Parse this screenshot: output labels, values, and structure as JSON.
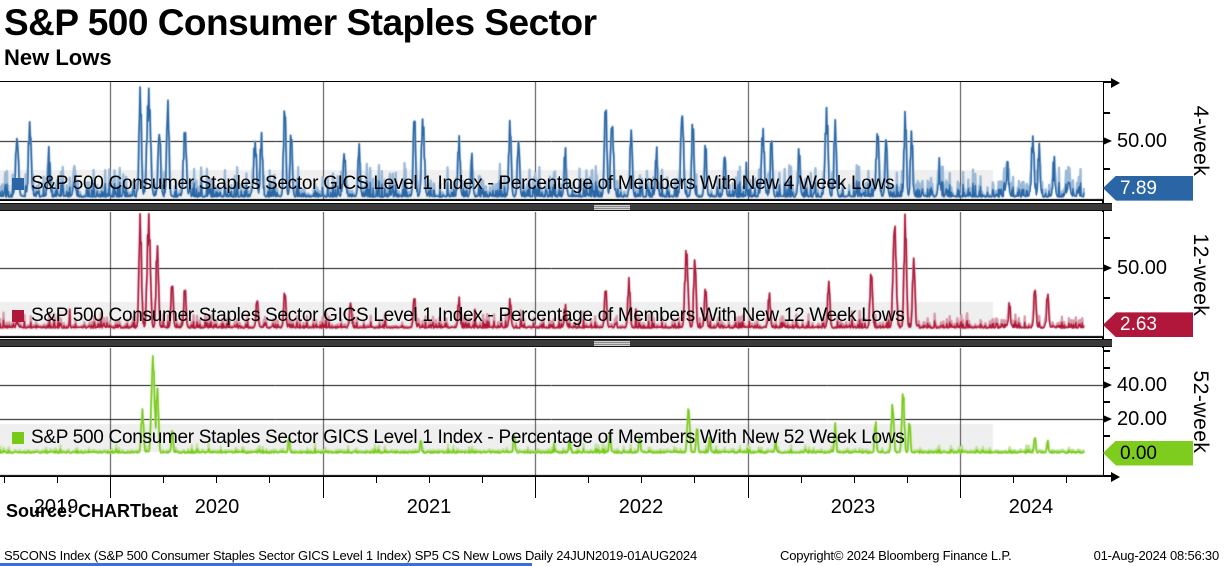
{
  "header": {
    "title": "S&P 500 Consumer Staples Sector",
    "subtitle": "New Lows"
  },
  "x_axis": {
    "years": [
      "2019",
      "2020",
      "2021",
      "2022",
      "2023",
      "2024"
    ]
  },
  "chart_data": [
    {
      "type": "line",
      "panel_label": "4-week",
      "legend": "S&P 500 Consumer Staples Sector GICS Level 1 Index - Percentage of Members With New 4 Week Lows",
      "unit": "percent of members",
      "color": "#2a66a5",
      "color_light": "#9ab9d8",
      "tag_label": "7.89",
      "tag_text_color": "#ffffff",
      "last_value": 7.89,
      "ylim": [
        0,
        105
      ],
      "yticks_labeled": [
        {
          "value": 50,
          "label": "50.00"
        }
      ],
      "yticks_minor": [
        25,
        75
      ],
      "baseline_noise": {
        "activity": 0.55,
        "typical_max": 32
      },
      "spikes": [
        [
          2019.56,
          55,
          5
        ],
        [
          2019.62,
          68,
          5
        ],
        [
          2019.71,
          45,
          4
        ],
        [
          2019.83,
          30,
          4
        ],
        [
          2020.14,
          100,
          4
        ],
        [
          2020.18,
          97,
          6
        ],
        [
          2020.23,
          60,
          5
        ],
        [
          2020.27,
          88,
          4
        ],
        [
          2020.35,
          62,
          5
        ],
        [
          2020.68,
          50,
          6
        ],
        [
          2020.71,
          58,
          4
        ],
        [
          2020.82,
          85,
          4
        ],
        [
          2020.85,
          60,
          4
        ],
        [
          2021.1,
          40,
          5
        ],
        [
          2021.17,
          48,
          4
        ],
        [
          2021.43,
          78,
          4
        ],
        [
          2021.47,
          72,
          5
        ],
        [
          2021.64,
          55,
          4
        ],
        [
          2021.7,
          40,
          4
        ],
        [
          2021.88,
          70,
          4
        ],
        [
          2021.92,
          52,
          4
        ],
        [
          2022.14,
          45,
          4
        ],
        [
          2022.33,
          88,
          4
        ],
        [
          2022.36,
          70,
          5
        ],
        [
          2022.45,
          62,
          4
        ],
        [
          2022.57,
          45,
          4
        ],
        [
          2022.69,
          78,
          5
        ],
        [
          2022.74,
          70,
          4
        ],
        [
          2022.8,
          50,
          4
        ],
        [
          2022.89,
          40,
          4
        ],
        [
          2023.07,
          62,
          5
        ],
        [
          2023.11,
          55,
          4
        ],
        [
          2023.24,
          45,
          4
        ],
        [
          2023.37,
          80,
          5
        ],
        [
          2023.41,
          70,
          4
        ],
        [
          2023.61,
          60,
          5
        ],
        [
          2023.65,
          55,
          4
        ],
        [
          2023.74,
          78,
          4
        ],
        [
          2023.77,
          60,
          4
        ],
        [
          2023.9,
          35,
          4
        ],
        [
          2024.22,
          35,
          5
        ],
        [
          2024.34,
          55,
          5
        ],
        [
          2024.37,
          48,
          4
        ],
        [
          2024.44,
          38,
          4
        ],
        [
          2024.51,
          30,
          4
        ]
      ]
    },
    {
      "type": "line",
      "panel_label": "12-week",
      "legend": "S&P 500 Consumer Staples Sector GICS Level 1 Index - Percentage of Members With New 12 Week Lows",
      "unit": "percent of members",
      "color": "#b0173a",
      "color_light": "#d79aa6",
      "tag_label": "2.63",
      "tag_text_color": "#ffffff",
      "last_value": 2.63,
      "ylim": [
        0,
        96
      ],
      "yticks_labeled": [
        {
          "value": 50,
          "label": "50.00"
        }
      ],
      "yticks_minor": [
        25,
        75
      ],
      "baseline_noise": {
        "activity": 0.45,
        "typical_max": 16
      },
      "spikes": [
        [
          2020.14,
          97,
          4
        ],
        [
          2020.18,
          100,
          5
        ],
        [
          2020.22,
          72,
          4
        ],
        [
          2020.29,
          40,
          4
        ],
        [
          2020.35,
          35,
          4
        ],
        [
          2020.69,
          25,
          4
        ],
        [
          2020.82,
          32,
          4
        ],
        [
          2021.13,
          22,
          4
        ],
        [
          2021.43,
          28,
          4
        ],
        [
          2021.64,
          26,
          4
        ],
        [
          2021.88,
          25,
          4
        ],
        [
          2022.14,
          20,
          4
        ],
        [
          2022.33,
          35,
          4
        ],
        [
          2022.44,
          42,
          4
        ],
        [
          2022.71,
          68,
          5
        ],
        [
          2022.75,
          60,
          4
        ],
        [
          2022.8,
          35,
          4
        ],
        [
          2023.1,
          30,
          4
        ],
        [
          2023.38,
          40,
          4
        ],
        [
          2023.58,
          50,
          4
        ],
        [
          2023.69,
          92,
          5
        ],
        [
          2023.74,
          97,
          4
        ],
        [
          2023.78,
          60,
          4
        ],
        [
          2024.23,
          22,
          4
        ],
        [
          2024.35,
          35,
          4
        ],
        [
          2024.41,
          30,
          4
        ]
      ]
    },
    {
      "type": "line",
      "panel_label": "52-week",
      "legend": "S&P 500 Consumer Staples Sector GICS Level 1 Index - Percentage of Members With New 52 Week Lows",
      "unit": "percent of members",
      "color": "#77cb16",
      "color_light": "#bfe39a",
      "tag_label": "0.00",
      "tag_text_color": "#000000",
      "last_value": 0.0,
      "ylim": [
        0,
        62
      ],
      "yticks_labeled": [
        {
          "value": 40,
          "label": "40.00"
        },
        {
          "value": 20,
          "label": "20.00"
        }
      ],
      "yticks_minor": [
        10,
        30,
        50,
        60
      ],
      "baseline_noise": {
        "activity": 0.3,
        "typical_max": 6
      },
      "spikes": [
        [
          2020.15,
          26,
          4
        ],
        [
          2020.2,
          60,
          5
        ],
        [
          2020.22,
          40,
          4
        ],
        [
          2020.29,
          15,
          3
        ],
        [
          2020.84,
          10,
          3
        ],
        [
          2021.46,
          8,
          3
        ],
        [
          2021.9,
          12,
          3
        ],
        [
          2022.16,
          8,
          3
        ],
        [
          2022.35,
          12,
          3
        ],
        [
          2022.49,
          10,
          3
        ],
        [
          2022.72,
          28,
          4
        ],
        [
          2022.76,
          16,
          3
        ],
        [
          2022.82,
          10,
          3
        ],
        [
          2023.13,
          8,
          3
        ],
        [
          2023.41,
          18,
          3
        ],
        [
          2023.6,
          20,
          3
        ],
        [
          2023.68,
          30,
          4
        ],
        [
          2023.73,
          38,
          4
        ],
        [
          2023.76,
          20,
          3
        ],
        [
          2024.35,
          10,
          3
        ],
        [
          2024.41,
          8,
          3
        ]
      ]
    }
  ],
  "source_label": "Source: CHARTbeat",
  "footer": {
    "left": "S5CONS Index (S&P 500 Consumer Staples Sector GICS Level 1 Index) SP5 CS New Lows  Daily 24JUN2019-01AUG2024",
    "center": "Copyright© 2024 Bloomberg Finance L.P.",
    "right": "01-Aug-2024 08:56:30"
  }
}
